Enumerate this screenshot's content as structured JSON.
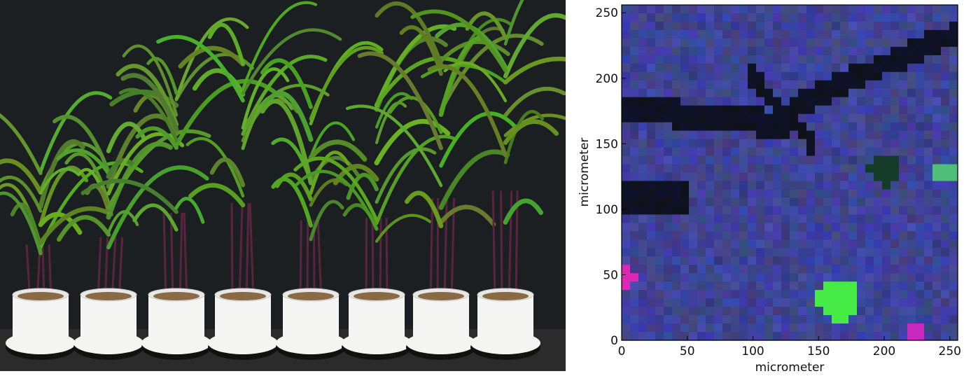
{
  "photo": {
    "pot_count": 8,
    "colors": {
      "backdrop": "#1c1f22",
      "pot": "#f4f4f2",
      "leaf": "#5f9a2c",
      "stem": "#5a2440",
      "floor": "#2a2a2a"
    }
  },
  "micrograph": {
    "xlabel": "micrometer",
    "ylabel": "micrometer",
    "xlim": [
      0,
      256
    ],
    "ylim": [
      0,
      256
    ],
    "xticks": [
      "0",
      "50",
      "100",
      "150",
      "200",
      "250"
    ],
    "yticks": [
      "0",
      "50",
      "100",
      "150",
      "200",
      "250"
    ],
    "colors": {
      "base": "#3a3f8c",
      "dark": "#0d0f14",
      "green": "#44f046",
      "magenta": "#e02cb8"
    }
  }
}
